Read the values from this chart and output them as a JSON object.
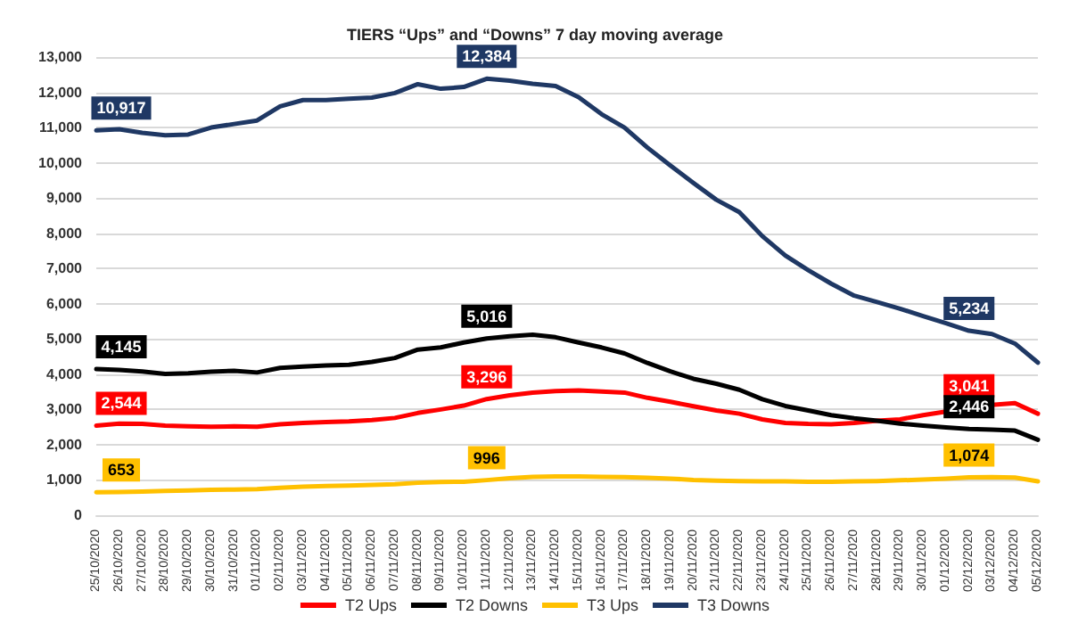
{
  "chart_data": {
    "type": "line",
    "title": "TIERS “Ups” and “Downs” 7 day moving average",
    "categories": [
      "25/10/2020",
      "26/10/2020",
      "27/10/2020",
      "28/10/2020",
      "29/10/2020",
      "30/10/2020",
      "31/10/2020",
      "01/11/2020",
      "02/11/2020",
      "03/11/2020",
      "04/11/2020",
      "05/11/2020",
      "06/11/2020",
      "07/11/2020",
      "08/11/2020",
      "09/11/2020",
      "10/11/2020",
      "11/11/2020",
      "12/11/2020",
      "13/11/2020",
      "14/11/2020",
      "15/11/2020",
      "16/11/2020",
      "17/11/2020",
      "18/11/2020",
      "19/11/2020",
      "20/11/2020",
      "21/11/2020",
      "22/11/2020",
      "23/11/2020",
      "24/11/2020",
      "25/11/2020",
      "26/11/2020",
      "27/11/2020",
      "28/11/2020",
      "29/11/2020",
      "30/11/2020",
      "01/12/2020",
      "02/12/2020",
      "03/12/2020",
      "04/12/2020",
      "05/12/2020"
    ],
    "series": [
      {
        "name": "T2 Ups",
        "color": "#ff0000",
        "values": [
          2544,
          2600,
          2590,
          2540,
          2520,
          2510,
          2520,
          2510,
          2580,
          2620,
          2640,
          2660,
          2700,
          2760,
          2900,
          3000,
          3110,
          3296,
          3400,
          3480,
          3520,
          3540,
          3510,
          3480,
          3330,
          3220,
          3090,
          2970,
          2880,
          2720,
          2620,
          2590,
          2580,
          2620,
          2680,
          2720,
          2840,
          2940,
          3041,
          3130,
          3180,
          2880
        ],
        "value_labels": [
          "2,544",
          null,
          null,
          null,
          null,
          null,
          null,
          null,
          null,
          null,
          null,
          null,
          null,
          null,
          null,
          null,
          null,
          "3,296",
          null,
          null,
          null,
          null,
          null,
          null,
          null,
          null,
          null,
          null,
          null,
          null,
          null,
          null,
          null,
          null,
          null,
          null,
          null,
          null,
          "3,041",
          null,
          null,
          null
        ]
      },
      {
        "name": "T2 Downs",
        "color": "#000000",
        "values": [
          4145,
          4120,
          4080,
          4010,
          4030,
          4070,
          4100,
          4050,
          4180,
          4220,
          4250,
          4270,
          4350,
          4460,
          4700,
          4760,
          4900,
          5016,
          5080,
          5120,
          5050,
          4900,
          4760,
          4590,
          4320,
          4080,
          3870,
          3730,
          3560,
          3290,
          3100,
          2970,
          2840,
          2750,
          2680,
          2600,
          2540,
          2490,
          2446,
          2430,
          2400,
          2140
        ],
        "value_labels": [
          "4,145",
          null,
          null,
          null,
          null,
          null,
          null,
          null,
          null,
          null,
          null,
          null,
          null,
          null,
          null,
          null,
          null,
          "5,016",
          null,
          null,
          null,
          null,
          null,
          null,
          null,
          null,
          null,
          null,
          null,
          null,
          null,
          null,
          null,
          null,
          null,
          null,
          null,
          null,
          "2,446",
          null,
          null,
          null
        ]
      },
      {
        "name": "T3 Ups",
        "color": "#ffc000",
        "values": [
          653,
          660,
          670,
          690,
          700,
          720,
          730,
          740,
          780,
          810,
          830,
          840,
          860,
          880,
          920,
          940,
          950,
          996,
          1050,
          1090,
          1100,
          1100,
          1090,
          1080,
          1060,
          1040,
          1000,
          980,
          970,
          960,
          960,
          950,
          950,
          960,
          970,
          990,
          1010,
          1040,
          1074,
          1080,
          1070,
          960
        ],
        "value_labels": [
          "653",
          null,
          null,
          null,
          null,
          null,
          null,
          null,
          null,
          null,
          null,
          null,
          null,
          null,
          null,
          null,
          null,
          "996",
          null,
          null,
          null,
          null,
          null,
          null,
          null,
          null,
          null,
          null,
          null,
          null,
          null,
          null,
          null,
          null,
          null,
          null,
          null,
          null,
          "1,074",
          null,
          null,
          null
        ]
      },
      {
        "name": "T3 Downs",
        "color": "#1f3864",
        "values": [
          10917,
          10950,
          10850,
          10780,
          10800,
          11000,
          11100,
          11200,
          11600,
          11780,
          11780,
          11820,
          11850,
          11980,
          12230,
          12100,
          12150,
          12384,
          12330,
          12240,
          12180,
          11860,
          11380,
          11000,
          10430,
          9920,
          9430,
          8950,
          8600,
          7920,
          7370,
          6950,
          6570,
          6230,
          6050,
          5860,
          5650,
          5450,
          5234,
          5140,
          4870,
          4330
        ],
        "value_labels": [
          "10,917",
          null,
          null,
          null,
          null,
          null,
          null,
          null,
          null,
          null,
          null,
          null,
          null,
          null,
          null,
          null,
          null,
          "12,384",
          null,
          null,
          null,
          null,
          null,
          null,
          null,
          null,
          null,
          null,
          null,
          null,
          null,
          null,
          null,
          null,
          null,
          null,
          null,
          null,
          "5,234",
          null,
          null,
          null
        ]
      }
    ],
    "ylim": [
      0,
      13000
    ],
    "yticks": [
      0,
      {
        "value": 1000,
        "label": "1,000"
      },
      {
        "value": 2000,
        "label": "2,000"
      },
      {
        "value": 3000,
        "label": "3,000"
      },
      {
        "value": 4000,
        "label": "4,000"
      },
      {
        "value": 5000,
        "label": "5,000"
      },
      {
        "value": 6000,
        "label": "6,000"
      },
      {
        "value": 7000,
        "label": "7,000"
      },
      {
        "value": 8000,
        "label": "8,000"
      },
      {
        "value": 9000,
        "label": "9,000"
      },
      {
        "value": 10000,
        "label": "10,000"
      },
      {
        "value": 11000,
        "label": "11,000"
      },
      {
        "value": 12000,
        "label": "12,000"
      },
      {
        "value": 13000,
        "label": "13,000"
      }
    ],
    "grid": "y",
    "legend": "bottom",
    "marker": "none",
    "line_style": "solid"
  }
}
